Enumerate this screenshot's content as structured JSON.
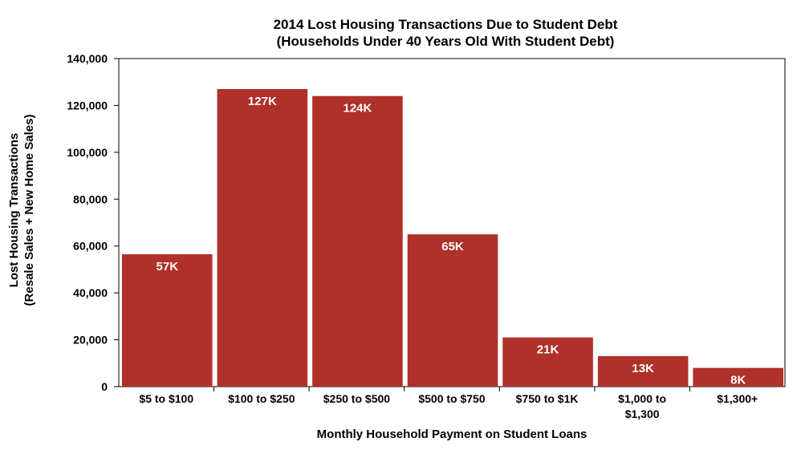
{
  "chart_data": {
    "type": "bar",
    "title": "2014 Lost Housing Transactions Due to Student Debt",
    "subtitle": "(Households Under 40 Years Old With Student Debt)",
    "xlabel": "Monthly Household Payment on Student Loans",
    "ylabel_line1": "Lost  Housing Transactions",
    "ylabel_line2": "(Resale Sales + New Home Sales)",
    "categories": [
      [
        "$5 to $100"
      ],
      [
        "$100 to $250"
      ],
      [
        "$250 to $500"
      ],
      [
        "$500 to $750"
      ],
      [
        "$750 to $1K"
      ],
      [
        "$1,000 to",
        "$1,300"
      ],
      [
        "$1,300+"
      ]
    ],
    "values": [
      56500,
      127000,
      124000,
      65000,
      21000,
      13000,
      8000
    ],
    "data_labels": [
      "57K",
      "127K",
      "124K",
      "65K",
      "21K",
      "13K",
      "8K"
    ],
    "ylim": [
      0,
      140000
    ],
    "yticks": [
      0,
      20000,
      40000,
      60000,
      80000,
      100000,
      120000,
      140000
    ],
    "ytick_labels": [
      "0",
      "20,000",
      "40,000",
      "60,000",
      "80,000",
      "100,000",
      "120,000",
      "140,000"
    ],
    "grid": false,
    "bar_color": "#b0302a"
  }
}
